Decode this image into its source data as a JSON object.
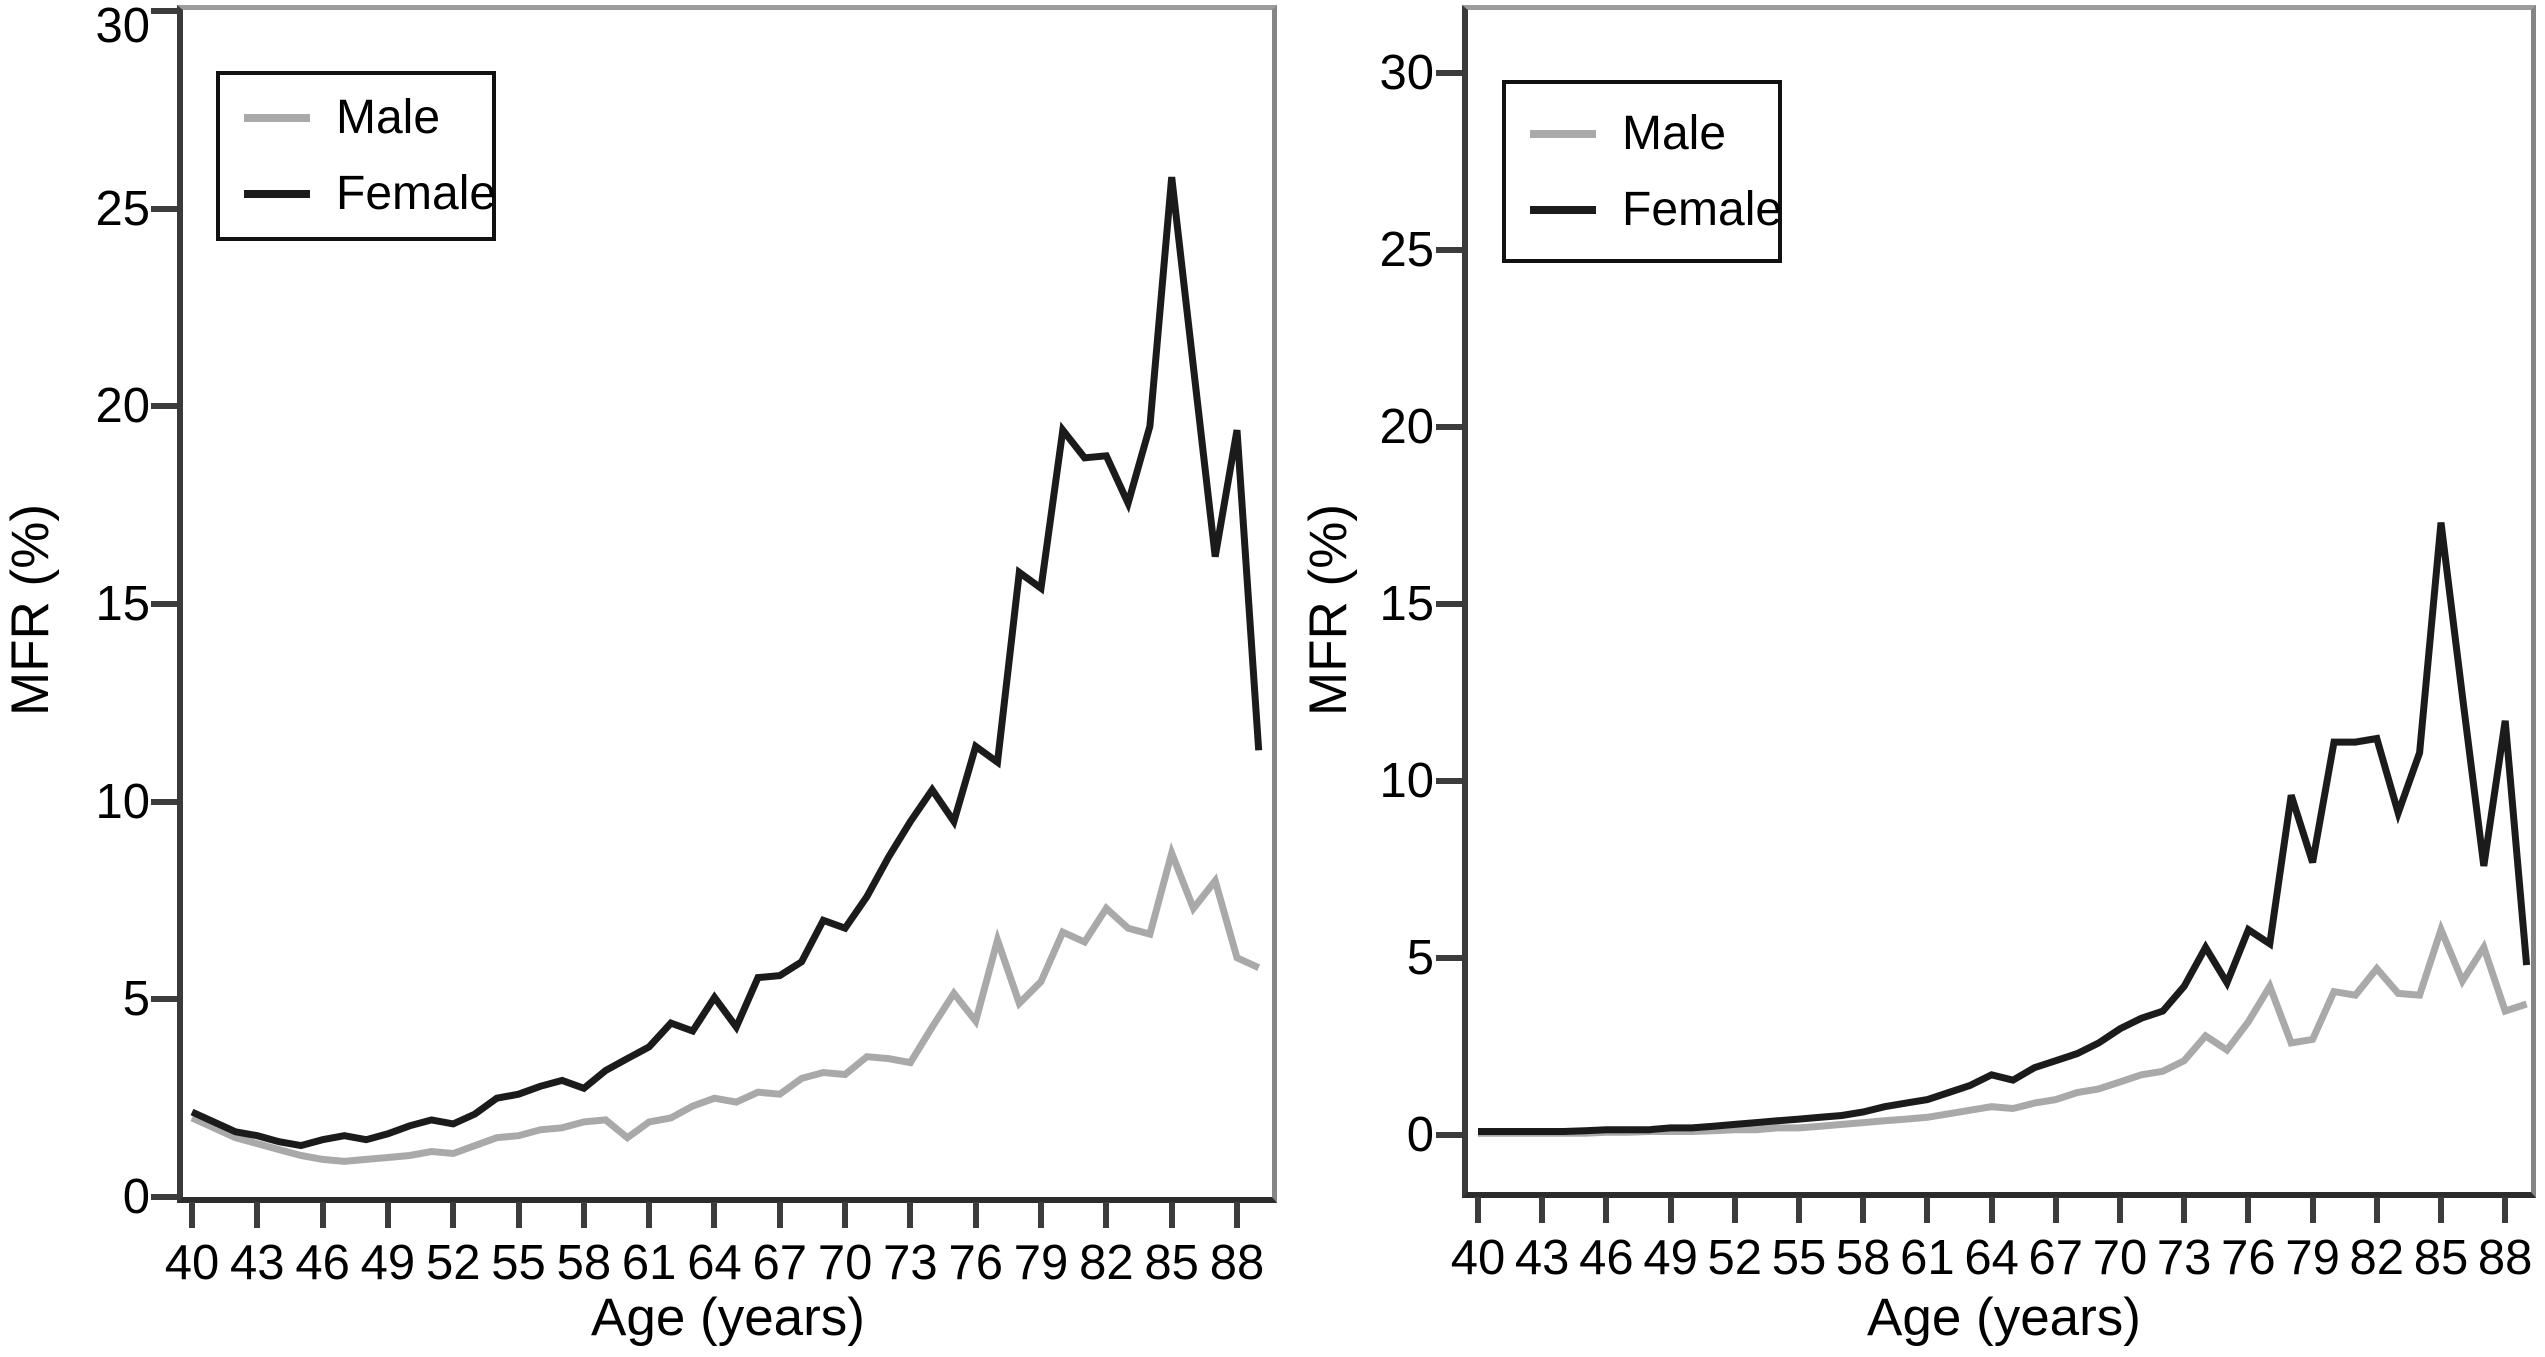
{
  "colors": {
    "male": "#a9a9a9",
    "female": "#1b1b1b",
    "axis": "#3c3c3c",
    "text": "#000000"
  },
  "legend": {
    "male_label": "Male",
    "female_label": "Female"
  },
  "chart_data": [
    {
      "type": "line",
      "title": "",
      "xlabel": "Age (years)",
      "ylabel": "MFR (%)",
      "legend_position": "upper-left",
      "grid": false,
      "xlim": [
        40,
        89.6
      ],
      "ylim": [
        0,
        30
      ],
      "x_ticks": [
        40,
        43,
        46,
        49,
        52,
        55,
        58,
        61,
        64,
        67,
        70,
        73,
        76,
        79,
        82,
        85,
        88
      ],
      "y_ticks": [
        0,
        5,
        10,
        15,
        20,
        25,
        30
      ],
      "x": [
        40,
        41,
        42,
        43,
        44,
        45,
        46,
        47,
        48,
        49,
        50,
        51,
        52,
        53,
        54,
        55,
        56,
        57,
        58,
        59,
        60,
        61,
        62,
        63,
        64,
        65,
        66,
        67,
        68,
        69,
        70,
        71,
        72,
        73,
        74,
        75,
        76,
        77,
        78,
        79,
        80,
        81,
        82,
        83,
        84,
        85,
        86,
        87,
        88,
        89
      ],
      "series": [
        {
          "name": "Male",
          "color_key": "male",
          "values": [
            2.0,
            1.75,
            1.5,
            1.35,
            1.2,
            1.05,
            0.95,
            0.9,
            0.95,
            1.0,
            1.05,
            1.15,
            1.1,
            1.3,
            1.5,
            1.55,
            1.7,
            1.75,
            1.9,
            1.95,
            1.5,
            1.9,
            2.0,
            2.3,
            2.5,
            2.4,
            2.65,
            2.6,
            3.0,
            3.15,
            3.1,
            3.55,
            3.5,
            3.4,
            4.3,
            5.15,
            4.45,
            6.5,
            4.9,
            5.45,
            6.7,
            6.45,
            7.3,
            6.8,
            6.65,
            8.7,
            7.3,
            8.0,
            6.05,
            5.8
          ]
        },
        {
          "name": "Female",
          "color_key": "female",
          "values": [
            2.15,
            1.9,
            1.65,
            1.55,
            1.4,
            1.3,
            1.45,
            1.55,
            1.45,
            1.6,
            1.8,
            1.95,
            1.85,
            2.1,
            2.5,
            2.6,
            2.8,
            2.95,
            2.75,
            3.2,
            3.5,
            3.8,
            4.4,
            4.2,
            5.05,
            4.3,
            5.55,
            5.6,
            5.95,
            7.0,
            6.8,
            7.6,
            8.6,
            9.5,
            10.3,
            9.5,
            11.4,
            11.0,
            15.8,
            15.4,
            19.4,
            18.7,
            18.75,
            17.55,
            19.5,
            25.8,
            21.0,
            16.2,
            19.4,
            11.3
          ]
        }
      ]
    },
    {
      "type": "line",
      "title": "",
      "xlabel": "Age (years)",
      "ylabel": "MFR (%)",
      "legend_position": "upper-left",
      "grid": false,
      "xlim": [
        40,
        89.7
      ],
      "ylim": [
        -1.7,
        31.7
      ],
      "x_ticks": [
        40,
        43,
        46,
        49,
        52,
        55,
        58,
        61,
        64,
        67,
        70,
        73,
        76,
        79,
        82,
        85,
        88
      ],
      "y_ticks": [
        0,
        5,
        10,
        15,
        20,
        25,
        30
      ],
      "x": [
        40,
        41,
        42,
        43,
        44,
        45,
        46,
        47,
        48,
        49,
        50,
        51,
        52,
        53,
        54,
        55,
        56,
        57,
        58,
        59,
        60,
        61,
        62,
        63,
        64,
        65,
        66,
        67,
        68,
        69,
        70,
        71,
        72,
        73,
        74,
        75,
        76,
        77,
        78,
        79,
        80,
        81,
        82,
        83,
        84,
        85,
        86,
        87,
        88,
        89
      ],
      "series": [
        {
          "name": "Male",
          "color_key": "male",
          "values": [
            0.05,
            0.05,
            0.05,
            0.05,
            0.05,
            0.05,
            0.08,
            0.08,
            0.1,
            0.1,
            0.1,
            0.12,
            0.15,
            0.15,
            0.2,
            0.2,
            0.25,
            0.3,
            0.35,
            0.4,
            0.45,
            0.5,
            0.6,
            0.7,
            0.8,
            0.75,
            0.9,
            1.0,
            1.2,
            1.3,
            1.5,
            1.7,
            1.8,
            2.1,
            2.8,
            2.4,
            3.2,
            4.2,
            2.6,
            2.7,
            4.05,
            3.95,
            4.7,
            4.0,
            3.95,
            5.8,
            4.35,
            5.3,
            3.5,
            3.7
          ]
        },
        {
          "name": "Female",
          "color_key": "female",
          "values": [
            0.1,
            0.1,
            0.1,
            0.1,
            0.1,
            0.12,
            0.15,
            0.15,
            0.15,
            0.2,
            0.2,
            0.25,
            0.3,
            0.35,
            0.4,
            0.45,
            0.5,
            0.55,
            0.65,
            0.8,
            0.9,
            1.0,
            1.2,
            1.4,
            1.7,
            1.55,
            1.9,
            2.1,
            2.3,
            2.6,
            3.0,
            3.3,
            3.5,
            4.2,
            5.3,
            4.3,
            5.8,
            5.4,
            9.6,
            7.7,
            11.1,
            11.1,
            11.2,
            9.1,
            10.8,
            17.3,
            12.4,
            7.6,
            11.7,
            4.8
          ]
        }
      ]
    }
  ]
}
